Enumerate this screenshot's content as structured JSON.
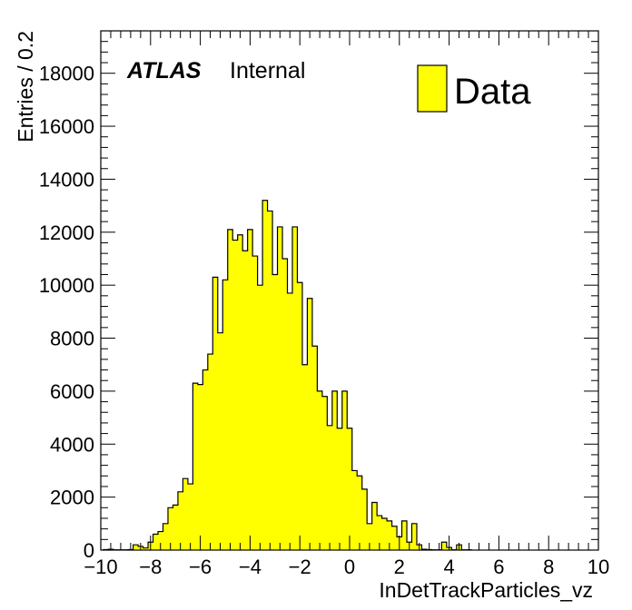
{
  "chart_data": {
    "type": "bar",
    "histogram": true,
    "xlabel": "InDetTrackParticles_vz",
    "ylabel": "Entries / 0.2",
    "xlim": [
      -10,
      10
    ],
    "ylim": [
      0,
      19600
    ],
    "x_major_ticks": [
      -10,
      -8,
      -6,
      -4,
      -2,
      0,
      2,
      4,
      6,
      8,
      10
    ],
    "x_tick_labels": [
      "−10",
      "−8",
      "−6",
      "−4",
      "−2",
      "0",
      "2",
      "4",
      "6",
      "8",
      "10"
    ],
    "y_major_ticks": [
      0,
      2000,
      4000,
      6000,
      8000,
      10000,
      12000,
      14000,
      16000,
      18000
    ],
    "y_tick_labels": [
      "0",
      "2000",
      "4000",
      "6000",
      "8000",
      "10000",
      "12000",
      "14000",
      "16000",
      "18000"
    ],
    "grid": false,
    "fill_color": "#ffff00",
    "line_color": "#000000",
    "annotation": {
      "bold": "ATLAS",
      "normal": "Internal"
    },
    "legend": {
      "position": "top-right",
      "entries": [
        {
          "label": "Data",
          "color": "#ffff00"
        }
      ]
    },
    "series": [
      {
        "name": "Data",
        "bin_width": 0.2,
        "bins": [
          [
            -9.8,
            20
          ],
          [
            -9.6,
            30
          ],
          [
            -9.4,
            10
          ],
          [
            -9.2,
            10
          ],
          [
            -9.0,
            10
          ],
          [
            -8.8,
            20
          ],
          [
            -8.6,
            200
          ],
          [
            -8.4,
            140
          ],
          [
            -8.2,
            80
          ],
          [
            -8.0,
            300
          ],
          [
            -7.8,
            600
          ],
          [
            -7.6,
            700
          ],
          [
            -7.4,
            1000
          ],
          [
            -7.2,
            1600
          ],
          [
            -7.0,
            1700
          ],
          [
            -6.8,
            2200
          ],
          [
            -6.6,
            2700
          ],
          [
            -6.4,
            2500
          ],
          [
            -6.2,
            6300
          ],
          [
            -6.0,
            6250
          ],
          [
            -5.8,
            6800
          ],
          [
            -5.6,
            7400
          ],
          [
            -5.4,
            10300
          ],
          [
            -5.2,
            8200
          ],
          [
            -5.0,
            10200
          ],
          [
            -4.8,
            12100
          ],
          [
            -4.6,
            11700
          ],
          [
            -4.4,
            11900
          ],
          [
            -4.2,
            11300
          ],
          [
            -4.0,
            12100
          ],
          [
            -3.8,
            11100
          ],
          [
            -3.6,
            10000
          ],
          [
            -3.4,
            13200
          ],
          [
            -3.2,
            12800
          ],
          [
            -3.0,
            10400
          ],
          [
            -2.8,
            12200
          ],
          [
            -2.6,
            11000
          ],
          [
            -2.4,
            9700
          ],
          [
            -2.2,
            12200
          ],
          [
            -2.0,
            10100
          ],
          [
            -1.8,
            7000
          ],
          [
            -1.6,
            9500
          ],
          [
            -1.4,
            7700
          ],
          [
            -1.2,
            6000
          ],
          [
            -1.0,
            5800
          ],
          [
            -0.8,
            4700
          ],
          [
            -0.6,
            6000
          ],
          [
            -0.4,
            4600
          ],
          [
            -0.2,
            6000
          ],
          [
            0.0,
            4600
          ],
          [
            0.2,
            3000
          ],
          [
            0.4,
            2800
          ],
          [
            0.6,
            2300
          ],
          [
            0.8,
            1000
          ],
          [
            1.0,
            1800
          ],
          [
            1.2,
            1300
          ],
          [
            1.4,
            1200
          ],
          [
            1.6,
            1100
          ],
          [
            1.8,
            900
          ],
          [
            2.0,
            500
          ],
          [
            2.2,
            1100
          ],
          [
            2.4,
            300
          ],
          [
            2.6,
            1000
          ],
          [
            2.8,
            200
          ],
          [
            3.0,
            30
          ],
          [
            3.2,
            20
          ],
          [
            3.4,
            10
          ],
          [
            3.6,
            10
          ],
          [
            3.8,
            300
          ],
          [
            4.0,
            100
          ],
          [
            4.2,
            10
          ],
          [
            4.4,
            200
          ],
          [
            4.6,
            10
          ],
          [
            4.8,
            10
          ]
        ]
      }
    ]
  }
}
